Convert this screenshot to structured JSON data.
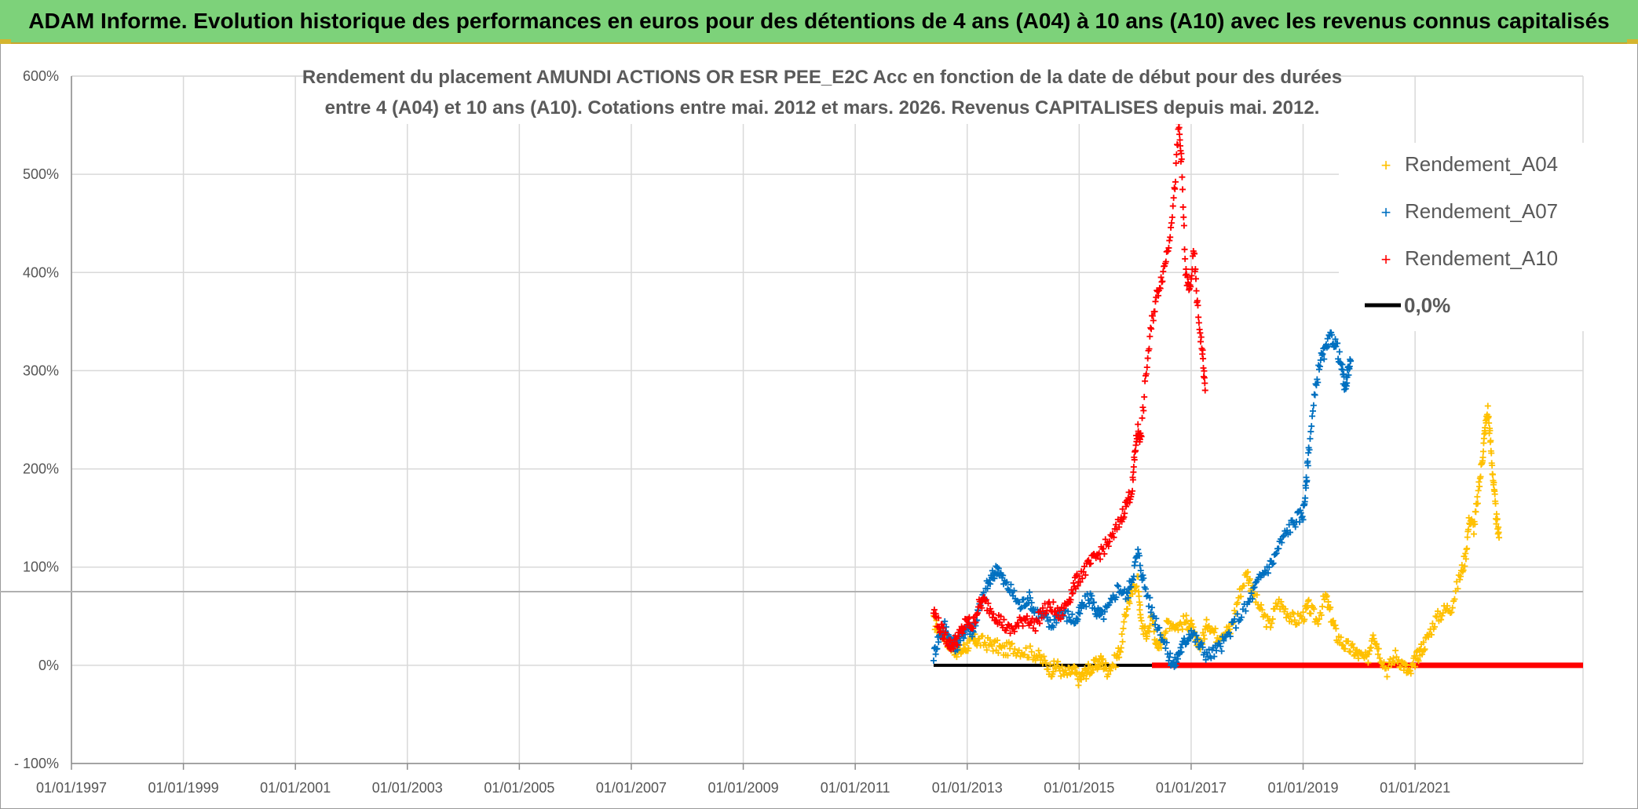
{
  "banner": {
    "title": "ADAM Informe. Evolution historique des performances en euros pour des détentions de 4 ans (A04) à 10 ans (A10) avec les revenus connus capitalisés"
  },
  "colors": {
    "banner_bg": "#7dd27a",
    "accent_gold": "#d4b52f",
    "a04": "#ffc000",
    "a07": "#0070c0",
    "a10": "#ff0000",
    "zero": "#000000",
    "grid": "#d9d9d9"
  },
  "chart_data": {
    "type": "scatter",
    "title_lines": [
      "Rendement du placement AMUNDI ACTIONS OR ESR PEE_E2C Acc en fonction de la date de début pour des durées",
      "entre 4 (A04) et 10 ans (A10). Cotations entre mai. 2012 et mars. 2026. Revenus CAPITALISES depuis mai. 2012."
    ],
    "xlabel": "",
    "ylabel": "",
    "xlim": [
      1997.0,
      2024.0
    ],
    "ylim": [
      -100,
      600
    ],
    "x_tick_values": [
      1997,
      1999,
      2001,
      2003,
      2005,
      2007,
      2009,
      2011,
      2013,
      2015,
      2017,
      2019,
      2021
    ],
    "x_tick_labels": [
      "01/01/1997",
      "01/01/1999",
      "01/01/2001",
      "01/01/2003",
      "01/01/2005",
      "01/01/2007",
      "01/01/2009",
      "01/01/2011",
      "01/01/2013",
      "01/01/2015",
      "01/01/2017",
      "01/01/2019",
      "01/01/2021"
    ],
    "y_tick_values": [
      -100,
      0,
      100,
      200,
      300,
      400,
      500,
      600
    ],
    "y_tick_labels": [
      "- 100%",
      "0%",
      "100%",
      "200%",
      "300%",
      "400%",
      "500%",
      "600%"
    ],
    "reference_line_y": 75,
    "legend": [
      "Rendement_A04",
      "Rendement_A07",
      "Rendement_A10",
      "0,0%"
    ],
    "legend_position": "top-right",
    "series": [
      {
        "name": "Rendement_A04",
        "color": "#ffc000",
        "points": [
          [
            2012.4,
            45
          ],
          [
            2012.5,
            35
          ],
          [
            2012.6,
            30
          ],
          [
            2012.7,
            20
          ],
          [
            2012.8,
            15
          ],
          [
            2012.9,
            15
          ],
          [
            2013.0,
            20
          ],
          [
            2013.1,
            25
          ],
          [
            2013.2,
            25
          ],
          [
            2013.35,
            22
          ],
          [
            2013.5,
            20
          ],
          [
            2013.65,
            15
          ],
          [
            2013.8,
            18
          ],
          [
            2014.0,
            15
          ],
          [
            2014.2,
            12
          ],
          [
            2014.35,
            5
          ],
          [
            2014.5,
            -5
          ],
          [
            2014.6,
            0
          ],
          [
            2014.75,
            -10
          ],
          [
            2014.9,
            -5
          ],
          [
            2015.0,
            -15
          ],
          [
            2015.1,
            -8
          ],
          [
            2015.2,
            -3
          ],
          [
            2015.3,
            0
          ],
          [
            2015.4,
            5
          ],
          [
            2015.5,
            -5
          ],
          [
            2015.65,
            5
          ],
          [
            2015.75,
            20
          ],
          [
            2015.85,
            60
          ],
          [
            2015.95,
            75
          ],
          [
            2016.05,
            90
          ],
          [
            2016.1,
            45
          ],
          [
            2016.2,
            30
          ],
          [
            2016.3,
            50
          ],
          [
            2016.4,
            15
          ],
          [
            2016.5,
            30
          ],
          [
            2016.6,
            45
          ],
          [
            2016.75,
            40
          ],
          [
            2016.9,
            45
          ],
          [
            2017.0,
            40
          ],
          [
            2017.1,
            20
          ],
          [
            2017.2,
            25
          ],
          [
            2017.3,
            45
          ],
          [
            2017.45,
            30
          ],
          [
            2017.6,
            35
          ],
          [
            2017.7,
            35
          ],
          [
            2017.85,
            70
          ],
          [
            2018.0,
            95
          ],
          [
            2018.1,
            75
          ],
          [
            2018.25,
            55
          ],
          [
            2018.4,
            40
          ],
          [
            2018.55,
            65
          ],
          [
            2018.7,
            55
          ],
          [
            2018.85,
            45
          ],
          [
            2019.0,
            50
          ],
          [
            2019.1,
            60
          ],
          [
            2019.25,
            45
          ],
          [
            2019.4,
            70
          ],
          [
            2019.5,
            50
          ],
          [
            2019.6,
            30
          ],
          [
            2019.75,
            20
          ],
          [
            2019.9,
            15
          ],
          [
            2020.0,
            10
          ],
          [
            2020.15,
            5
          ],
          [
            2020.25,
            35
          ],
          [
            2020.35,
            15
          ],
          [
            2020.5,
            -5
          ],
          [
            2020.65,
            10
          ],
          [
            2020.8,
            0
          ],
          [
            2020.9,
            -10
          ],
          [
            2021.0,
            5
          ],
          [
            2021.1,
            15
          ],
          [
            2021.2,
            25
          ],
          [
            2021.35,
            45
          ],
          [
            2021.5,
            55
          ],
          [
            2021.65,
            60
          ],
          [
            2021.8,
            90
          ],
          [
            2021.9,
            110
          ],
          [
            2021.97,
            150
          ],
          [
            2022.05,
            140
          ],
          [
            2022.12,
            170
          ],
          [
            2022.2,
            210
          ],
          [
            2022.25,
            240
          ],
          [
            2022.3,
            260
          ],
          [
            2022.35,
            225
          ],
          [
            2022.4,
            185
          ],
          [
            2022.45,
            150
          ],
          [
            2022.5,
            130
          ]
        ]
      },
      {
        "name": "Rendement_A07",
        "color": "#0070c0",
        "points": [
          [
            2012.4,
            10
          ],
          [
            2012.5,
            30
          ],
          [
            2012.6,
            40
          ],
          [
            2012.7,
            25
          ],
          [
            2012.8,
            20
          ],
          [
            2012.9,
            30
          ],
          [
            2013.0,
            40
          ],
          [
            2013.1,
            35
          ],
          [
            2013.2,
            55
          ],
          [
            2013.35,
            80
          ],
          [
            2013.45,
            90
          ],
          [
            2013.55,
            100
          ],
          [
            2013.65,
            85
          ],
          [
            2013.8,
            75
          ],
          [
            2013.95,
            60
          ],
          [
            2014.1,
            70
          ],
          [
            2014.2,
            55
          ],
          [
            2014.35,
            50
          ],
          [
            2014.5,
            40
          ],
          [
            2014.65,
            55
          ],
          [
            2014.8,
            50
          ],
          [
            2014.95,
            45
          ],
          [
            2015.05,
            60
          ],
          [
            2015.2,
            70
          ],
          [
            2015.3,
            55
          ],
          [
            2015.4,
            50
          ],
          [
            2015.55,
            60
          ],
          [
            2015.7,
            80
          ],
          [
            2015.85,
            70
          ],
          [
            2015.95,
            90
          ],
          [
            2016.05,
            115
          ],
          [
            2016.15,
            85
          ],
          [
            2016.3,
            55
          ],
          [
            2016.45,
            35
          ],
          [
            2016.6,
            10
          ],
          [
            2016.7,
            0
          ],
          [
            2016.8,
            15
          ],
          [
            2016.9,
            25
          ],
          [
            2017.0,
            35
          ],
          [
            2017.15,
            20
          ],
          [
            2017.3,
            10
          ],
          [
            2017.45,
            15
          ],
          [
            2017.6,
            25
          ],
          [
            2017.8,
            45
          ],
          [
            2018.0,
            60
          ],
          [
            2018.15,
            80
          ],
          [
            2018.3,
            95
          ],
          [
            2018.45,
            105
          ],
          [
            2018.6,
            125
          ],
          [
            2018.75,
            140
          ],
          [
            2018.9,
            150
          ],
          [
            2019.0,
            155
          ],
          [
            2019.05,
            180
          ],
          [
            2019.1,
            220
          ],
          [
            2019.2,
            270
          ],
          [
            2019.3,
            310
          ],
          [
            2019.4,
            320
          ],
          [
            2019.5,
            335
          ],
          [
            2019.6,
            325
          ],
          [
            2019.7,
            300
          ],
          [
            2019.75,
            280
          ],
          [
            2019.8,
            300
          ],
          [
            2019.85,
            310
          ]
        ]
      },
      {
        "name": "Rendement_A10",
        "color": "#ff0000",
        "points": [
          [
            2012.4,
            55
          ],
          [
            2012.5,
            40
          ],
          [
            2012.6,
            30
          ],
          [
            2012.7,
            20
          ],
          [
            2012.8,
            25
          ],
          [
            2012.9,
            35
          ],
          [
            2013.0,
            45
          ],
          [
            2013.1,
            40
          ],
          [
            2013.2,
            60
          ],
          [
            2013.3,
            65
          ],
          [
            2013.45,
            55
          ],
          [
            2013.6,
            45
          ],
          [
            2013.75,
            35
          ],
          [
            2013.9,
            40
          ],
          [
            2014.05,
            50
          ],
          [
            2014.2,
            40
          ],
          [
            2014.35,
            55
          ],
          [
            2014.5,
            60
          ],
          [
            2014.65,
            50
          ],
          [
            2014.8,
            65
          ],
          [
            2014.9,
            80
          ],
          [
            2015.0,
            90
          ],
          [
            2015.15,
            100
          ],
          [
            2015.3,
            110
          ],
          [
            2015.45,
            120
          ],
          [
            2015.6,
            130
          ],
          [
            2015.75,
            150
          ],
          [
            2015.85,
            165
          ],
          [
            2015.95,
            180
          ],
          [
            2016.0,
            220
          ],
          [
            2016.05,
            240
          ],
          [
            2016.1,
            230
          ],
          [
            2016.2,
            300
          ],
          [
            2016.3,
            350
          ],
          [
            2016.4,
            380
          ],
          [
            2016.5,
            400
          ],
          [
            2016.6,
            430
          ],
          [
            2016.7,
            480
          ],
          [
            2016.78,
            550
          ],
          [
            2016.83,
            510
          ],
          [
            2016.9,
            400
          ],
          [
            2016.97,
            380
          ],
          [
            2017.05,
            420
          ],
          [
            2017.12,
            360
          ],
          [
            2017.2,
            320
          ],
          [
            2017.25,
            280
          ]
        ]
      }
    ]
  }
}
